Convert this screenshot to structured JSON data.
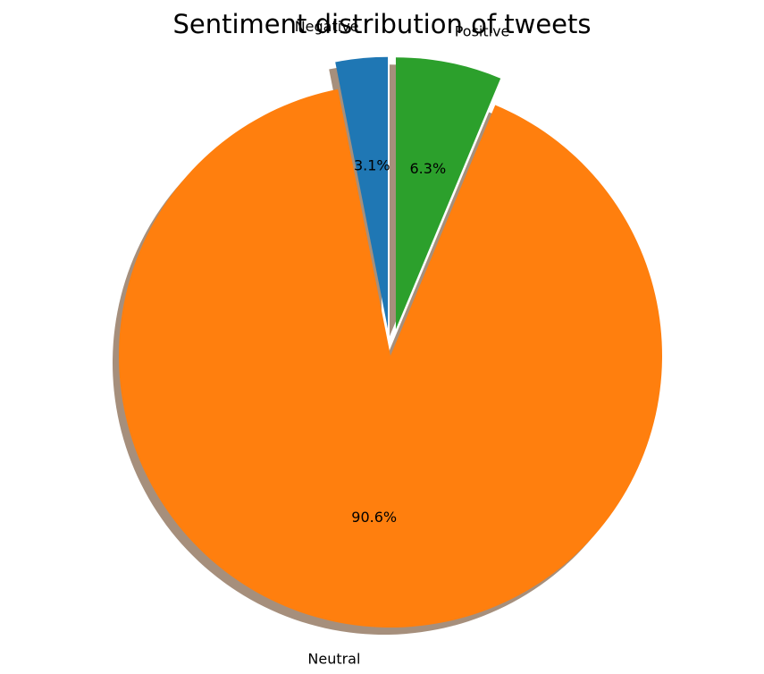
{
  "chart_data": {
    "type": "pie",
    "title": "Sentiment distribution of tweets",
    "slices": [
      {
        "label": "Negative",
        "value": 3.1,
        "pct_label": "3.1%",
        "color": "#1f77b4",
        "explode": 0.1
      },
      {
        "label": "Neutral",
        "value": 90.6,
        "pct_label": "90.6%",
        "color": "#ff7f0e",
        "explode": 0
      },
      {
        "label": "Positive",
        "value": 6.3,
        "pct_label": "6.3%",
        "color": "#2ca02c",
        "explode": 0.1
      }
    ],
    "shadow": true,
    "start_angle": 90,
    "direction": "counterclockwise",
    "shadow_color": "#a68f7c"
  }
}
